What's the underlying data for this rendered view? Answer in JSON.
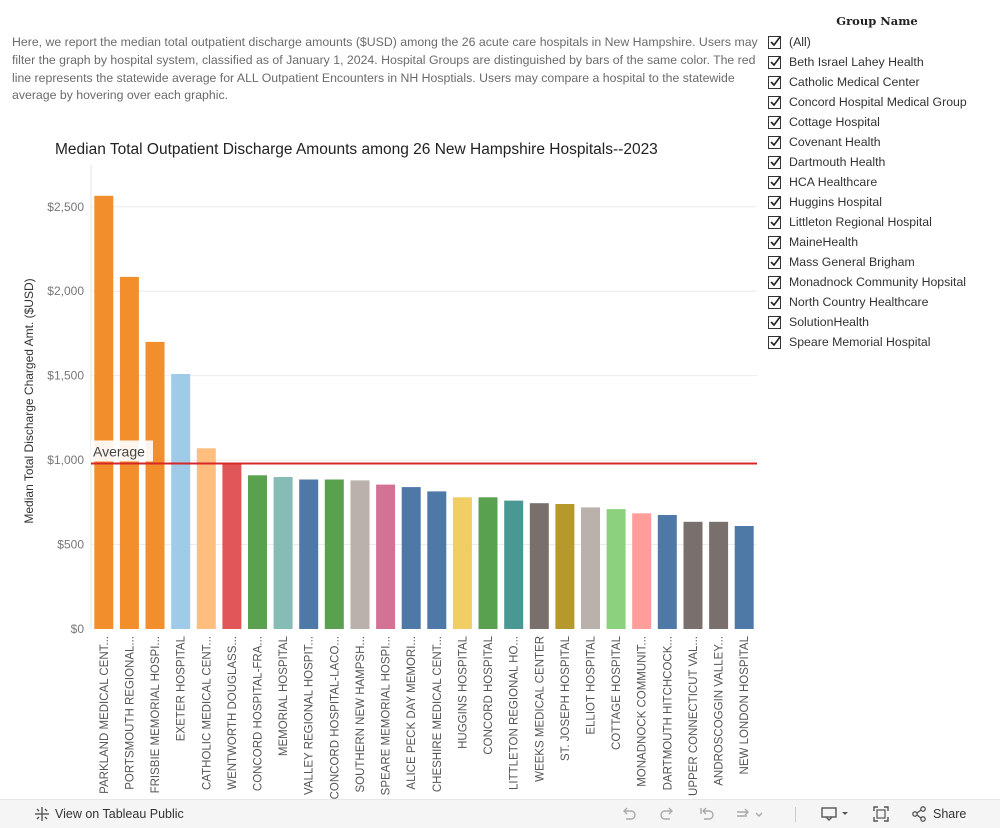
{
  "description": "Here, we report the median total outpatient discharge amounts ($USD) among the 26 acute care hospitals in New Hampshire. Users may filter the graph by hospital system, classified as of January 1, 2024. Hospital Groups are distinguished by bars of the same color. The red line represents the statewide average for ALL Outpatient Encounters in NH Hosptials. Users may compare a hospital to the statewide average by hovering over each graphic.",
  "filter": {
    "title": "Group  Name",
    "items": [
      "(All)",
      "Beth Israel Lahey Health",
      "Catholic Medical Center",
      "Concord Hospital Medical Group",
      "Cottage Hospital",
      "Covenant Health",
      "Dartmouth Health",
      "HCA Healthcare",
      "Huggins Hospital",
      "Littleton Regional Hospital",
      "MaineHealth",
      "Mass General Brigham",
      "Monadnock Community Hopsital",
      "North Country Healthcare",
      "SolutionHealth",
      "Speare Memorial Hospital"
    ]
  },
  "footer": {
    "view_label": "View on Tableau Public",
    "share_label": "Share"
  },
  "chart_data": {
    "type": "bar",
    "title": "Median Total Outpatient Discharge Amounts among 26 New Hampshire Hospitals--2023",
    "ylabel": "Median Total Discharge Charged Amt. ($USD)",
    "xlabel": "",
    "ylim": [
      0,
      2700
    ],
    "yticks": [
      0,
      500,
      1000,
      1500,
      2000,
      2500
    ],
    "ytick_labels": [
      "$0",
      "$500",
      "$1,000",
      "$1,500",
      "$2,000",
      "$2,500"
    ],
    "grid": true,
    "categories": [
      "PARKLAND MEDICAL CENT...",
      "PORTSMOUTH REGIONAL...",
      "FRISBIE MEMORIAL HOSPI...",
      "EXETER HOSPITAL",
      "CATHOLIC MEDICAL CENT...",
      "WENTWORTH DOUGLASS...",
      "CONCORD HOSPITAL-FRA...",
      "MEMORIAL HOSPITAL",
      "VALLEY REGIONAL HOSPIT...",
      "CONCORD HOSPITAL-LACO...",
      "SOUTHERN NEW HAMPSH...",
      "SPEARE MEMORIAL HOSPI...",
      "ALICE PECK DAY MEMORI...",
      "CHESHIRE MEDICAL CENT...",
      "HUGGINS HOSPITAL",
      "CONCORD HOSPITAL",
      "LITTLETON REGIONAL HO...",
      "WEEKS MEDICAL CENTER",
      "ST. JOSEPH HOSPITAL",
      "ELLIOT HOSPITAL",
      "COTTAGE HOSPITAL",
      "MONADNOCK COMMUNIT...",
      "DARTMOUTH HITCHCOCK...",
      "UPPER CONNECTICUT VAL...",
      "ANDROSCOGGIN VALLEY...",
      "NEW LONDON HOSPITAL"
    ],
    "values": [
      2565,
      2085,
      1700,
      1510,
      1070,
      975,
      910,
      900,
      885,
      885,
      880,
      855,
      840,
      815,
      780,
      780,
      760,
      745,
      740,
      720,
      710,
      685,
      675,
      635,
      635,
      610
    ],
    "colors": [
      "#f28e2b",
      "#f28e2b",
      "#f28e2b",
      "#a0cbe8",
      "#ffbe7d",
      "#e15759",
      "#59a14f",
      "#86bcb6",
      "#4e79a7",
      "#59a14f",
      "#bab0ac",
      "#d37295",
      "#4e79a7",
      "#4e79a7",
      "#f1ce63",
      "#59a14f",
      "#499894",
      "#79706e",
      "#b6992d",
      "#bab0ac",
      "#8cd17d",
      "#ff9d9a",
      "#4e79a7",
      "#79706e",
      "#79706e",
      "#4e79a7"
    ],
    "average": {
      "label": "Average",
      "value": 980,
      "color": "#d62728"
    }
  }
}
